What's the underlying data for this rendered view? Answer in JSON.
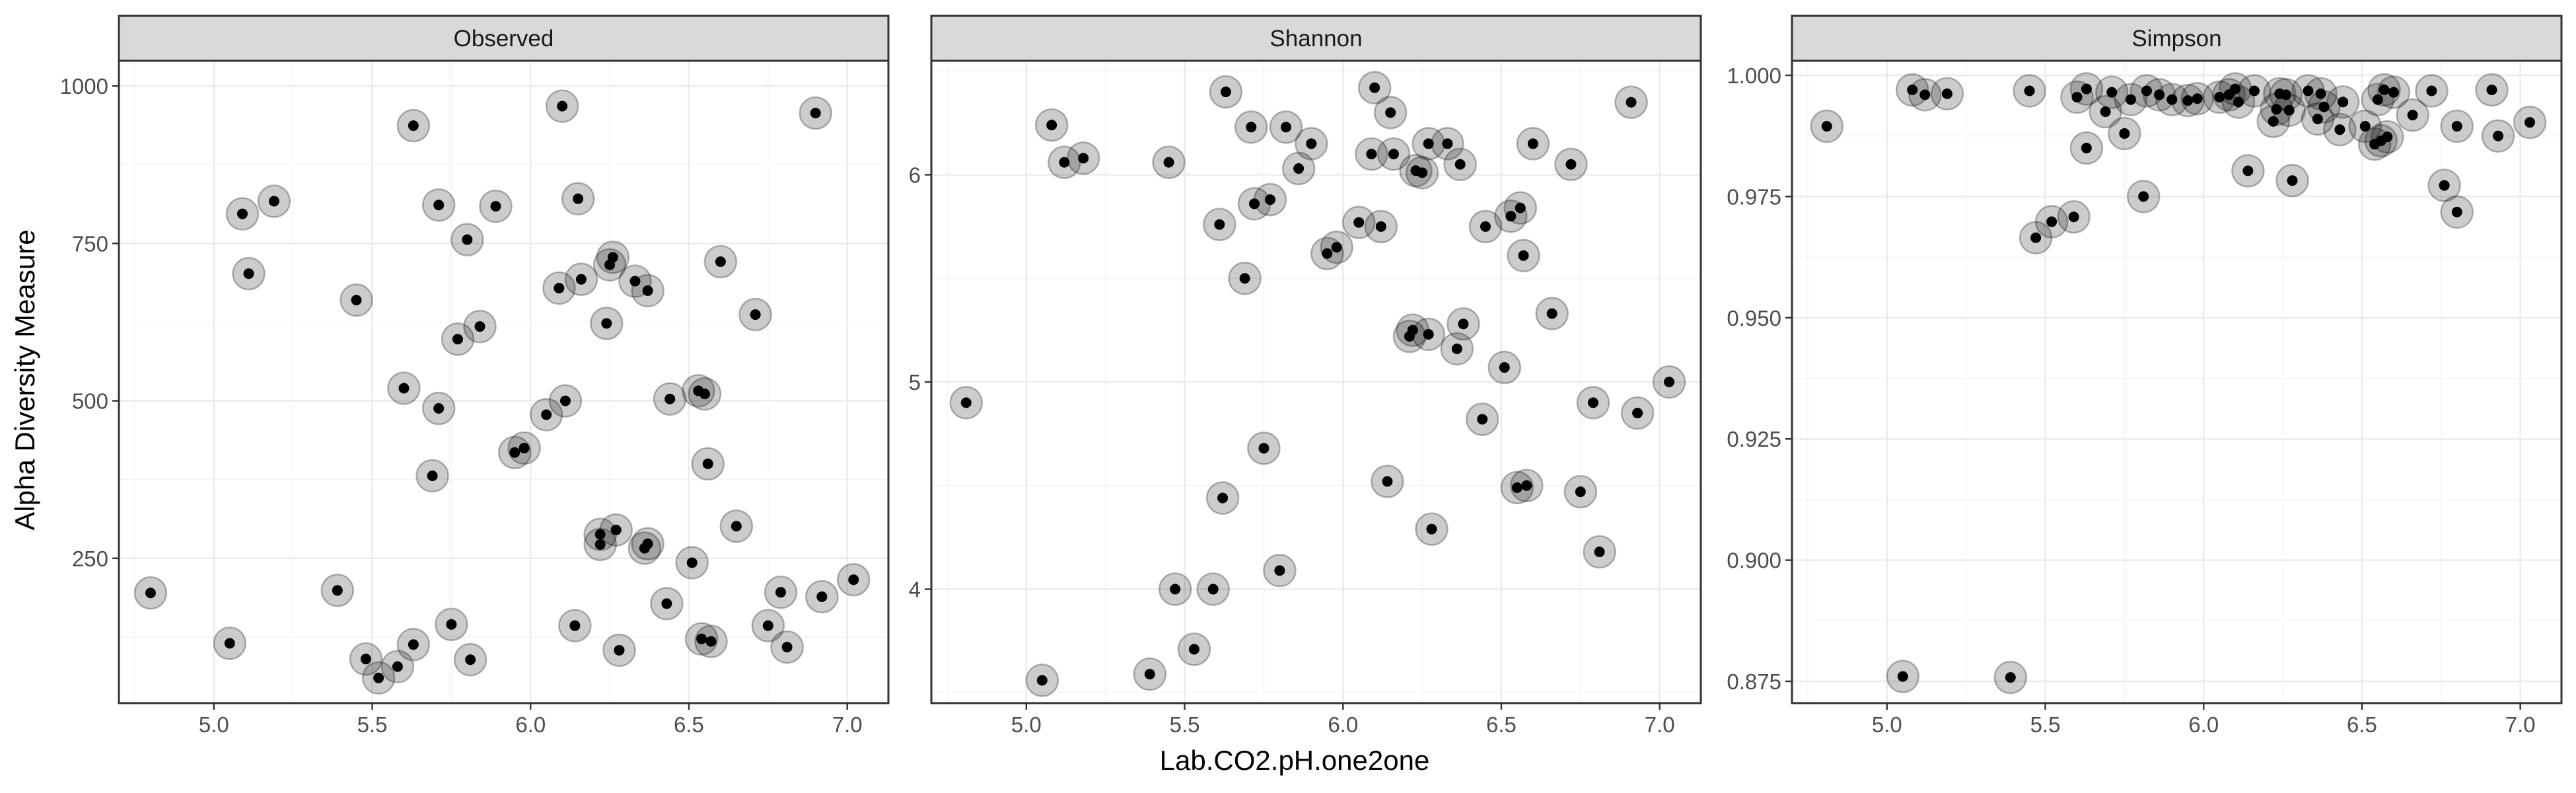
{
  "chart_data": {
    "type": "scatter",
    "xlabel": "Lab.CO2.pH.one2one",
    "ylabel": "Alpha Diversity Measure",
    "facets": [
      {
        "name": "Observed",
        "xlim": [
          4.7,
          7.13
        ],
        "ylim": [
          20,
          1040
        ],
        "x_ticks": [
          5.0,
          5.5,
          6.0,
          6.5,
          7.0
        ],
        "x_tick_labels": [
          "5.0",
          "5.5",
          "6.0",
          "6.5",
          "7.0"
        ],
        "y_ticks": [
          250,
          500,
          750,
          1000
        ],
        "y_tick_labels": [
          "250",
          "500",
          "750",
          "1000"
        ],
        "points": [
          [
            4.8,
            195
          ],
          [
            5.05,
            115
          ],
          [
            5.09,
            797
          ],
          [
            5.11,
            702
          ],
          [
            5.19,
            817
          ],
          [
            5.39,
            199
          ],
          [
            5.45,
            660
          ],
          [
            5.48,
            90
          ],
          [
            5.52,
            60
          ],
          [
            5.58,
            78
          ],
          [
            5.6,
            520
          ],
          [
            5.63,
            937
          ],
          [
            5.63,
            113
          ],
          [
            5.69,
            381
          ],
          [
            5.71,
            488
          ],
          [
            5.71,
            811
          ],
          [
            5.75,
            145
          ],
          [
            5.77,
            598
          ],
          [
            5.8,
            756
          ],
          [
            5.81,
            89
          ],
          [
            5.84,
            618
          ],
          [
            5.89,
            809
          ],
          [
            5.95,
            418
          ],
          [
            5.98,
            425
          ],
          [
            6.05,
            478
          ],
          [
            6.09,
            679
          ],
          [
            6.1,
            968
          ],
          [
            6.11,
            500
          ],
          [
            6.14,
            143
          ],
          [
            6.15,
            821
          ],
          [
            6.16,
            693
          ],
          [
            6.22,
            288
          ],
          [
            6.22,
            272
          ],
          [
            6.24,
            623
          ],
          [
            6.25,
            716
          ],
          [
            6.26,
            728
          ],
          [
            6.27,
            295
          ],
          [
            6.28,
            104
          ],
          [
            6.33,
            690
          ],
          [
            6.36,
            266
          ],
          [
            6.37,
            273
          ],
          [
            6.37,
            675
          ],
          [
            6.43,
            178
          ],
          [
            6.44,
            503
          ],
          [
            6.51,
            243
          ],
          [
            6.53,
            516
          ],
          [
            6.54,
            122
          ],
          [
            6.55,
            511
          ],
          [
            6.56,
            400
          ],
          [
            6.57,
            118
          ],
          [
            6.6,
            721
          ],
          [
            6.65,
            301
          ],
          [
            6.71,
            637
          ],
          [
            6.75,
            143
          ],
          [
            6.79,
            196
          ],
          [
            6.81,
            109
          ],
          [
            6.9,
            957
          ],
          [
            6.92,
            189
          ],
          [
            7.02,
            216
          ]
        ]
      },
      {
        "name": "Shannon",
        "xlim": [
          4.7,
          7.13
        ],
        "ylim": [
          3.45,
          6.55
        ],
        "x_ticks": [
          5.0,
          5.5,
          6.0,
          6.5,
          7.0
        ],
        "x_tick_labels": [
          "5.0",
          "5.5",
          "6.0",
          "6.5",
          "7.0"
        ],
        "y_ticks": [
          4,
          5,
          6
        ],
        "y_tick_labels": [
          "4",
          "5",
          "6"
        ],
        "points": [
          [
            4.81,
            4.9
          ],
          [
            5.05,
            3.56
          ],
          [
            5.08,
            6.24
          ],
          [
            5.12,
            6.06
          ],
          [
            5.18,
            6.08
          ],
          [
            5.39,
            3.59
          ],
          [
            5.45,
            6.06
          ],
          [
            5.47,
            4.0
          ],
          [
            5.53,
            3.71
          ],
          [
            5.59,
            4.0
          ],
          [
            5.61,
            5.76
          ],
          [
            5.62,
            4.44
          ],
          [
            5.63,
            6.4
          ],
          [
            5.69,
            5.5
          ],
          [
            5.71,
            6.23
          ],
          [
            5.72,
            5.86
          ],
          [
            5.75,
            4.68
          ],
          [
            5.77,
            5.88
          ],
          [
            5.8,
            4.09
          ],
          [
            5.82,
            6.23
          ],
          [
            5.86,
            6.03
          ],
          [
            5.9,
            6.15
          ],
          [
            5.95,
            5.62
          ],
          [
            5.98,
            5.65
          ],
          [
            6.05,
            5.77
          ],
          [
            6.09,
            6.1
          ],
          [
            6.1,
            6.42
          ],
          [
            6.12,
            5.75
          ],
          [
            6.14,
            4.52
          ],
          [
            6.15,
            6.3
          ],
          [
            6.16,
            6.1
          ],
          [
            6.21,
            5.22
          ],
          [
            6.22,
            5.25
          ],
          [
            6.23,
            6.02
          ],
          [
            6.25,
            6.01
          ],
          [
            6.27,
            5.23
          ],
          [
            6.27,
            6.15
          ],
          [
            6.28,
            4.29
          ],
          [
            6.33,
            6.15
          ],
          [
            6.36,
            5.16
          ],
          [
            6.37,
            6.05
          ],
          [
            6.38,
            5.28
          ],
          [
            6.44,
            4.82
          ],
          [
            6.45,
            5.75
          ],
          [
            6.51,
            5.07
          ],
          [
            6.53,
            5.8
          ],
          [
            6.55,
            4.49
          ],
          [
            6.56,
            5.84
          ],
          [
            6.57,
            5.61
          ],
          [
            6.58,
            4.5
          ],
          [
            6.6,
            6.15
          ],
          [
            6.66,
            5.33
          ],
          [
            6.72,
            6.05
          ],
          [
            6.75,
            4.47
          ],
          [
            6.79,
            4.9
          ],
          [
            6.81,
            4.18
          ],
          [
            6.91,
            6.35
          ],
          [
            6.93,
            4.85
          ],
          [
            7.03,
            5.0
          ]
        ]
      },
      {
        "name": "Simpson",
        "xlim": [
          4.7,
          7.13
        ],
        "ylim": [
          0.8705,
          1.003
        ],
        "x_ticks": [
          5.0,
          5.5,
          6.0,
          6.5,
          7.0
        ],
        "x_tick_labels": [
          "5.0",
          "5.5",
          "6.0",
          "6.5",
          "7.0"
        ],
        "y_ticks": [
          0.875,
          0.9,
          0.925,
          0.95,
          0.975,
          1.0
        ],
        "y_tick_labels": [
          "0.875",
          "0.900",
          "0.925",
          "0.950",
          "0.975",
          "1.000"
        ],
        "points": [
          [
            4.81,
            0.9895
          ],
          [
            5.05,
            0.876
          ],
          [
            5.08,
            0.997
          ],
          [
            5.12,
            0.996
          ],
          [
            5.19,
            0.9962
          ],
          [
            5.39,
            0.8758
          ],
          [
            5.45,
            0.9968
          ],
          [
            5.47,
            0.9665
          ],
          [
            5.52,
            0.9698
          ],
          [
            5.59,
            0.9708
          ],
          [
            5.6,
            0.9955
          ],
          [
            5.63,
            0.9972
          ],
          [
            5.63,
            0.985
          ],
          [
            5.69,
            0.9925
          ],
          [
            5.71,
            0.9965
          ],
          [
            5.75,
            0.988
          ],
          [
            5.77,
            0.995
          ],
          [
            5.81,
            0.975
          ],
          [
            5.82,
            0.9968
          ],
          [
            5.86,
            0.996
          ],
          [
            5.9,
            0.995
          ],
          [
            5.95,
            0.9948
          ],
          [
            5.98,
            0.9952
          ],
          [
            6.05,
            0.9955
          ],
          [
            6.08,
            0.996
          ],
          [
            6.1,
            0.9972
          ],
          [
            6.11,
            0.9945
          ],
          [
            6.14,
            0.9803
          ],
          [
            6.16,
            0.9968
          ],
          [
            6.22,
            0.9905
          ],
          [
            6.23,
            0.993
          ],
          [
            6.24,
            0.9962
          ],
          [
            6.26,
            0.996
          ],
          [
            6.27,
            0.9928
          ],
          [
            6.28,
            0.9783
          ],
          [
            6.33,
            0.9968
          ],
          [
            6.36,
            0.991
          ],
          [
            6.37,
            0.9962
          ],
          [
            6.38,
            0.9935
          ],
          [
            6.43,
            0.9888
          ],
          [
            6.44,
            0.9945
          ],
          [
            6.51,
            0.9895
          ],
          [
            6.54,
            0.9858
          ],
          [
            6.55,
            0.995
          ],
          [
            6.56,
            0.9865
          ],
          [
            6.57,
            0.997
          ],
          [
            6.58,
            0.9873
          ],
          [
            6.6,
            0.9965
          ],
          [
            6.66,
            0.9918
          ],
          [
            6.72,
            0.9968
          ],
          [
            6.76,
            0.9773
          ],
          [
            6.8,
            0.9718
          ],
          [
            6.8,
            0.9895
          ],
          [
            6.91,
            0.997
          ],
          [
            6.93,
            0.9875
          ],
          [
            7.03,
            0.9903
          ]
        ]
      }
    ]
  }
}
